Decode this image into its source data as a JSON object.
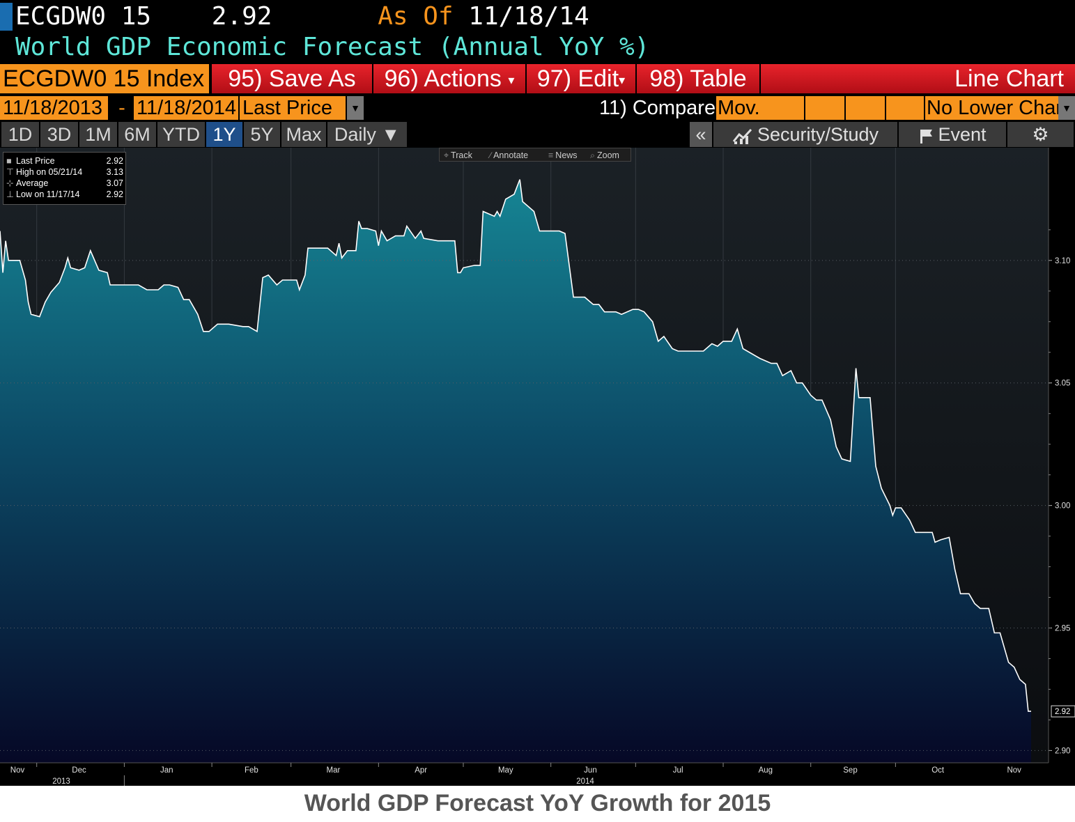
{
  "header": {
    "ticker": "ECGDW0 15",
    "price": "2.92",
    "as_of_label": "As Of",
    "as_of_date": "11/18/14",
    "description": "World GDP Economic Forecast (Annual YoY %)"
  },
  "toolbar": {
    "index_label": "ECGDW0 15 Index",
    "save_as": "95) Save As",
    "actions": "96) Actions",
    "edit": "97) Edit",
    "table": "98) Table",
    "chart_type": "Line Chart",
    "dropdown_arrow": "▾"
  },
  "params": {
    "start_date": "11/18/2013",
    "dash": "-",
    "end_date": "11/18/2014",
    "field": "Last Price",
    "compare": "11) Compare",
    "mov_avgs": "Mov. Avgs",
    "lower_chart": "No Lower Chart",
    "dropdown_glyph": "▼"
  },
  "ranges": {
    "items": [
      "1D",
      "3D",
      "1M",
      "6M",
      "YTD",
      "1Y",
      "5Y",
      "Max"
    ],
    "active": "1Y",
    "frequency": "Daily ▼"
  },
  "tools": {
    "collapse": "«",
    "security_study": "Security/Study",
    "event": "Event",
    "settings_glyph": "⚙"
  },
  "legend": {
    "last_label": "Last Price",
    "last_value": "2.92",
    "high_label": "High on 05/21/14",
    "high_value": "3.13",
    "avg_label": "Average",
    "avg_value": "3.07",
    "low_label": "Low on 11/17/14",
    "low_value": "2.92"
  },
  "mini_tools": {
    "track": "Track",
    "annotate": "Annotate",
    "news": "News",
    "zoom": "Zoom"
  },
  "caption": "World GDP Forecast YoY Growth for 2015",
  "colors": {
    "orange": "#f7941d",
    "red": "#e8232b",
    "teal_fill_top": "#157f8c",
    "navy_fill_bottom": "#070a2a",
    "line": "#ffffff"
  },
  "chart_data": {
    "type": "area",
    "title": "",
    "xlabel": "",
    "ylabel": "",
    "ylim": [
      2.895,
      3.146
    ],
    "yticks": [
      2.9,
      2.95,
      3.0,
      3.05,
      3.1
    ],
    "ytick_labels": [
      "2.90",
      "2.95",
      "3.00",
      "3.05",
      "3.10"
    ],
    "last_value_label": "2.92",
    "month_labels": [
      "Nov",
      "Dec",
      "Jan",
      "Feb",
      "Mar",
      "Apr",
      "May",
      "Jun",
      "Jul",
      "Aug",
      "Sep",
      "Oct",
      "Nov"
    ],
    "year_labels": [
      "2013",
      "2014"
    ],
    "series": [
      {
        "values": [
          {
            "x": "2013-11-18",
            "y": 3.112
          },
          {
            "x": "2013-11-19",
            "y": 3.095
          },
          {
            "x": "2013-11-20",
            "y": 3.108
          },
          {
            "x": "2013-11-21",
            "y": 3.1
          },
          {
            "x": "2013-11-22",
            "y": 3.1
          },
          {
            "x": "2013-11-25",
            "y": 3.1
          },
          {
            "x": "2013-11-27",
            "y": 3.092
          },
          {
            "x": "2013-11-28",
            "y": 3.083
          },
          {
            "x": "2013-11-29",
            "y": 3.078
          },
          {
            "x": "2013-12-02",
            "y": 3.077
          },
          {
            "x": "2013-12-04",
            "y": 3.083
          },
          {
            "x": "2013-12-06",
            "y": 3.087
          },
          {
            "x": "2013-12-09",
            "y": 3.091
          },
          {
            "x": "2013-12-11",
            "y": 3.097
          },
          {
            "x": "2013-12-12",
            "y": 3.101
          },
          {
            "x": "2013-12-13",
            "y": 3.097
          },
          {
            "x": "2013-12-16",
            "y": 3.096
          },
          {
            "x": "2013-12-18",
            "y": 3.097
          },
          {
            "x": "2013-12-20",
            "y": 3.104
          },
          {
            "x": "2013-12-23",
            "y": 3.096
          },
          {
            "x": "2013-12-26",
            "y": 3.095
          },
          {
            "x": "2013-12-27",
            "y": 3.09
          },
          {
            "x": "2013-12-30",
            "y": 3.09
          },
          {
            "x": "2014-01-02",
            "y": 3.09
          },
          {
            "x": "2014-01-06",
            "y": 3.09
          },
          {
            "x": "2014-01-09",
            "y": 3.088
          },
          {
            "x": "2014-01-13",
            "y": 3.088
          },
          {
            "x": "2014-01-15",
            "y": 3.09
          },
          {
            "x": "2014-01-17",
            "y": 3.09
          },
          {
            "x": "2014-01-20",
            "y": 3.089
          },
          {
            "x": "2014-01-22",
            "y": 3.084
          },
          {
            "x": "2014-01-24",
            "y": 3.084
          },
          {
            "x": "2014-01-27",
            "y": 3.078
          },
          {
            "x": "2014-01-29",
            "y": 3.071
          },
          {
            "x": "2014-01-31",
            "y": 3.071
          },
          {
            "x": "2014-02-03",
            "y": 3.074
          },
          {
            "x": "2014-02-07",
            "y": 3.074
          },
          {
            "x": "2014-02-12",
            "y": 3.073
          },
          {
            "x": "2014-02-14",
            "y": 3.073
          },
          {
            "x": "2014-02-17",
            "y": 3.071
          },
          {
            "x": "2014-02-19",
            "y": 3.093
          },
          {
            "x": "2014-02-21",
            "y": 3.094
          },
          {
            "x": "2014-02-24",
            "y": 3.09
          },
          {
            "x": "2014-02-26",
            "y": 3.092
          },
          {
            "x": "2014-03-03",
            "y": 3.092
          },
          {
            "x": "2014-03-04",
            "y": 3.088
          },
          {
            "x": "2014-03-06",
            "y": 3.094
          },
          {
            "x": "2014-03-07",
            "y": 3.105
          },
          {
            "x": "2014-03-12",
            "y": 3.105
          },
          {
            "x": "2014-03-14",
            "y": 3.105
          },
          {
            "x": "2014-03-17",
            "y": 3.102
          },
          {
            "x": "2014-03-18",
            "y": 3.107
          },
          {
            "x": "2014-03-19",
            "y": 3.101
          },
          {
            "x": "2014-03-21",
            "y": 3.104
          },
          {
            "x": "2014-03-24",
            "y": 3.104
          },
          {
            "x": "2014-03-25",
            "y": 3.116
          },
          {
            "x": "2014-03-26",
            "y": 3.113
          },
          {
            "x": "2014-03-28",
            "y": 3.113
          },
          {
            "x": "2014-03-31",
            "y": 3.112
          },
          {
            "x": "2014-04-01",
            "y": 3.106
          },
          {
            "x": "2014-04-02",
            "y": 3.112
          },
          {
            "x": "2014-04-04",
            "y": 3.108
          },
          {
            "x": "2014-04-07",
            "y": 3.11
          },
          {
            "x": "2014-04-10",
            "y": 3.11
          },
          {
            "x": "2014-04-11",
            "y": 3.114
          },
          {
            "x": "2014-04-14",
            "y": 3.109
          },
          {
            "x": "2014-04-16",
            "y": 3.112
          },
          {
            "x": "2014-04-17",
            "y": 3.109
          },
          {
            "x": "2014-04-22",
            "y": 3.108
          },
          {
            "x": "2014-04-24",
            "y": 3.108
          },
          {
            "x": "2014-04-28",
            "y": 3.108
          },
          {
            "x": "2014-04-29",
            "y": 3.095
          },
          {
            "x": "2014-04-30",
            "y": 3.095
          },
          {
            "x": "2014-05-01",
            "y": 3.097
          },
          {
            "x": "2014-05-05",
            "y": 3.098
          },
          {
            "x": "2014-05-07",
            "y": 3.098
          },
          {
            "x": "2014-05-08",
            "y": 3.12
          },
          {
            "x": "2014-05-12",
            "y": 3.118
          },
          {
            "x": "2014-05-13",
            "y": 3.12
          },
          {
            "x": "2014-05-14",
            "y": 3.118
          },
          {
            "x": "2014-05-16",
            "y": 3.125
          },
          {
            "x": "2014-05-19",
            "y": 3.127
          },
          {
            "x": "2014-05-21",
            "y": 3.133
          },
          {
            "x": "2014-05-22",
            "y": 3.124
          },
          {
            "x": "2014-05-26",
            "y": 3.12
          },
          {
            "x": "2014-05-28",
            "y": 3.112
          },
          {
            "x": "2014-05-29",
            "y": 3.112
          },
          {
            "x": "2014-06-04",
            "y": 3.112
          },
          {
            "x": "2014-06-06",
            "y": 3.111
          },
          {
            "x": "2014-06-09",
            "y": 3.085
          },
          {
            "x": "2014-06-13",
            "y": 3.085
          },
          {
            "x": "2014-06-16",
            "y": 3.082
          },
          {
            "x": "2014-06-18",
            "y": 3.082
          },
          {
            "x": "2014-06-20",
            "y": 3.079
          },
          {
            "x": "2014-06-24",
            "y": 3.079
          },
          {
            "x": "2014-06-26",
            "y": 3.078
          },
          {
            "x": "2014-06-30",
            "y": 3.08
          },
          {
            "x": "2014-07-02",
            "y": 3.08
          },
          {
            "x": "2014-07-04",
            "y": 3.079
          },
          {
            "x": "2014-07-07",
            "y": 3.075
          },
          {
            "x": "2014-07-09",
            "y": 3.067
          },
          {
            "x": "2014-07-11",
            "y": 3.069
          },
          {
            "x": "2014-07-14",
            "y": 3.064
          },
          {
            "x": "2014-07-16",
            "y": 3.063
          },
          {
            "x": "2014-07-25",
            "y": 3.063
          },
          {
            "x": "2014-07-28",
            "y": 3.066
          },
          {
            "x": "2014-07-30",
            "y": 3.065
          },
          {
            "x": "2014-08-01",
            "y": 3.067
          },
          {
            "x": "2014-08-04",
            "y": 3.067
          },
          {
            "x": "2014-08-06",
            "y": 3.072
          },
          {
            "x": "2014-08-08",
            "y": 3.064
          },
          {
            "x": "2014-08-11",
            "y": 3.062
          },
          {
            "x": "2014-08-14",
            "y": 3.06
          },
          {
            "x": "2014-08-18",
            "y": 3.058
          },
          {
            "x": "2014-08-20",
            "y": 3.058
          },
          {
            "x": "2014-08-22",
            "y": 3.053
          },
          {
            "x": "2014-08-25",
            "y": 3.055
          },
          {
            "x": "2014-08-27",
            "y": 3.05
          },
          {
            "x": "2014-08-29",
            "y": 3.05
          },
          {
            "x": "2014-09-01",
            "y": 3.045
          },
          {
            "x": "2014-09-03",
            "y": 3.043
          },
          {
            "x": "2014-09-05",
            "y": 3.043
          },
          {
            "x": "2014-09-08",
            "y": 3.035
          },
          {
            "x": "2014-09-10",
            "y": 3.024
          },
          {
            "x": "2014-09-12",
            "y": 3.019
          },
          {
            "x": "2014-09-15",
            "y": 3.018
          },
          {
            "x": "2014-09-17",
            "y": 3.056
          },
          {
            "x": "2014-09-18",
            "y": 3.044
          },
          {
            "x": "2014-09-22",
            "y": 3.044
          },
          {
            "x": "2014-09-24",
            "y": 3.016
          },
          {
            "x": "2014-09-26",
            "y": 3.007
          },
          {
            "x": "2014-09-29",
            "y": 3.0
          },
          {
            "x": "2014-09-30",
            "y": 2.996
          },
          {
            "x": "2014-10-01",
            "y": 2.999
          },
          {
            "x": "2014-10-03",
            "y": 2.999
          },
          {
            "x": "2014-10-06",
            "y": 2.994
          },
          {
            "x": "2014-10-08",
            "y": 2.989
          },
          {
            "x": "2014-10-10",
            "y": 2.989
          },
          {
            "x": "2014-10-14",
            "y": 2.989
          },
          {
            "x": "2014-10-15",
            "y": 2.985
          },
          {
            "x": "2014-10-17",
            "y": 2.986
          },
          {
            "x": "2014-10-20",
            "y": 2.987
          },
          {
            "x": "2014-10-22",
            "y": 2.974
          },
          {
            "x": "2014-10-24",
            "y": 2.964
          },
          {
            "x": "2014-10-27",
            "y": 2.964
          },
          {
            "x": "2014-10-29",
            "y": 2.96
          },
          {
            "x": "2014-10-31",
            "y": 2.958
          },
          {
            "x": "2014-11-03",
            "y": 2.958
          },
          {
            "x": "2014-11-05",
            "y": 2.948
          },
          {
            "x": "2014-11-07",
            "y": 2.948
          },
          {
            "x": "2014-11-10",
            "y": 2.936
          },
          {
            "x": "2014-11-12",
            "y": 2.934
          },
          {
            "x": "2014-11-14",
            "y": 2.929
          },
          {
            "x": "2014-11-16",
            "y": 2.927
          },
          {
            "x": "2014-11-17",
            "y": 2.916
          },
          {
            "x": "2014-11-18",
            "y": 2.916
          }
        ]
      }
    ]
  }
}
